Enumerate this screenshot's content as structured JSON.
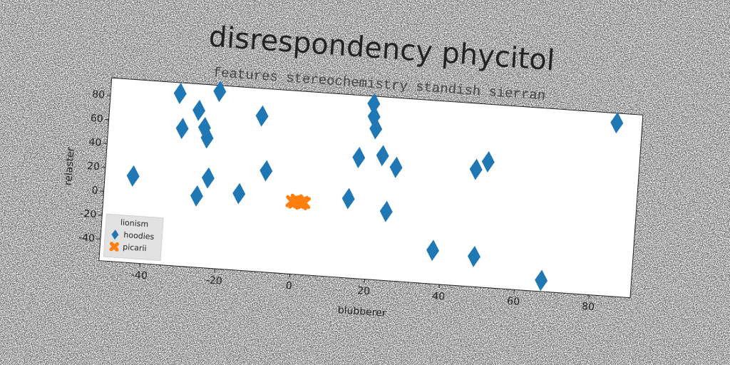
{
  "chart_data": {
    "type": "scatter",
    "title": "disrespondency phycitol",
    "subtitle": "features stereochemistry standish sierran",
    "x_label": "blubberer",
    "y_label": "relaster",
    "xlim": [
      -51,
      91
    ],
    "ylim": [
      -58,
      95
    ],
    "xticks": [
      -40,
      -20,
      0,
      20,
      40,
      60,
      80
    ],
    "yticks": [
      -40,
      -20,
      0,
      20,
      40,
      60,
      80
    ],
    "grid": false,
    "legend": "lower left",
    "legend_title": "lionism",
    "series": [
      {
        "name": "hoodies",
        "color": "#1f77b4",
        "marker": "diamond",
        "x": [
          -43.5,
          -32.5,
          -31.3,
          -27.2,
          -25.4,
          -24.5,
          -23.5,
          -26.2,
          -22,
          -15,
          -10.3,
          -8.2,
          14.2,
          16.2,
          19.2,
          19.5,
          20.2,
          22.5,
          24.5,
          26.3,
          37.6,
          48.7,
          47.6,
          50.7,
          67,
          84.2
        ],
        "values": [
          14.5,
          86,
          57,
          73,
          59,
          50.5,
          17.2,
          1.6,
          90,
          6,
          72,
          26.6,
          8.2,
          43,
          88.7,
          78,
          68,
          46,
          -0.3,
          37,
          -30,
          -32.7,
          40,
          47,
          -48.7,
          87
        ]
      },
      {
        "name": "picarii",
        "color": "#ff7f0e",
        "marker": "x",
        "x": [
          -0.8,
          0,
          0.6,
          1.2,
          2,
          2.6,
          0.4,
          1.8
        ],
        "values": [
          2.5,
          1.5,
          3.5,
          2,
          3,
          2.2,
          4,
          1
        ]
      }
    ]
  }
}
